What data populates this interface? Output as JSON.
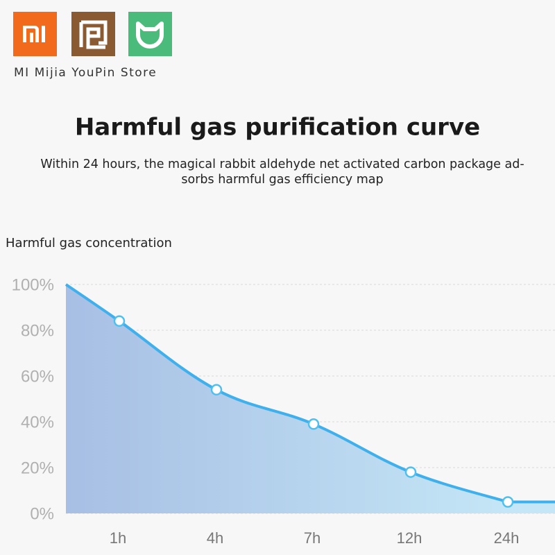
{
  "store_name": "MI Mijia YouPin Store",
  "chart_data": {
    "type": "area",
    "title": "Harmful gas purification curve",
    "subtitle": [
      "Within 24 hours, the magical rabbit aldehyde net activated carbon package ad-",
      "sorbs harmful gas efficiency map"
    ],
    "y_label": "Harmful gas concentration",
    "categories": [
      null,
      "1h",
      "4h",
      "7h",
      "12h",
      "24h"
    ],
    "values": [
      100,
      84,
      54,
      39,
      18,
      5
    ],
    "color": "#3fb0ec",
    "ylim": [
      0,
      100
    ],
    "yticks": [
      {
        "value": 0,
        "label": "0%"
      },
      {
        "value": 20,
        "label": "20%"
      },
      {
        "value": 40,
        "label": "40%"
      },
      {
        "value": 60,
        "label": "60%"
      },
      {
        "value": 80,
        "label": "80%"
      },
      {
        "value": 100,
        "label": "100%"
      }
    ],
    "grid": true
  }
}
